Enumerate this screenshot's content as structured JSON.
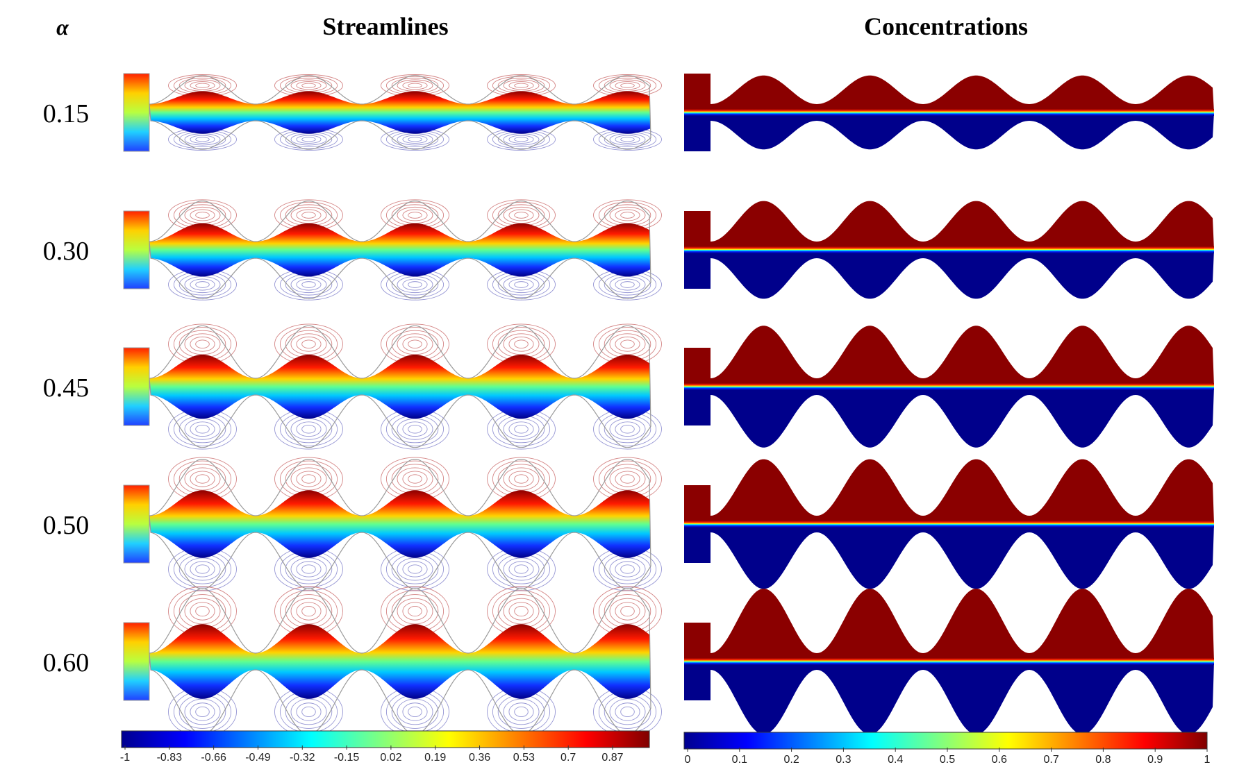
{
  "header": {
    "alpha_label": "α",
    "left_title": "Streamlines",
    "right_title": "Concentrations"
  },
  "rows": [
    {
      "alpha": "0.15",
      "amplitude": 0.15
    },
    {
      "alpha": "0.30",
      "amplitude": 0.3
    },
    {
      "alpha": "0.45",
      "amplitude": 0.45
    },
    {
      "alpha": "0.50",
      "amplitude": 0.5
    },
    {
      "alpha": "0.60",
      "amplitude": 0.6
    }
  ],
  "colorbars": {
    "streamlines": {
      "ticks": [
        "-1",
        "-0.83",
        "-0.66",
        "-0.49",
        "-0.32",
        "-0.15",
        "0.02",
        "0.19",
        "0.36",
        "0.53",
        "0.7",
        "0.87"
      ]
    },
    "concentrations": {
      "ticks": [
        "0",
        "0.1",
        "0.2",
        "0.3",
        "0.4",
        "0.5",
        "0.6",
        "0.7",
        "0.8",
        "0.9",
        "1"
      ]
    }
  },
  "colors": {
    "jet": [
      "#00008f",
      "#0000ff",
      "#00ffff",
      "#ffff00",
      "#ff0000",
      "#800000"
    ],
    "dark_red": "#8b0000",
    "dark_blue": "#00008b",
    "streamline_top": "#b02020",
    "streamline_bottom": "#4040b0",
    "outline": "#9a9a9a"
  }
}
